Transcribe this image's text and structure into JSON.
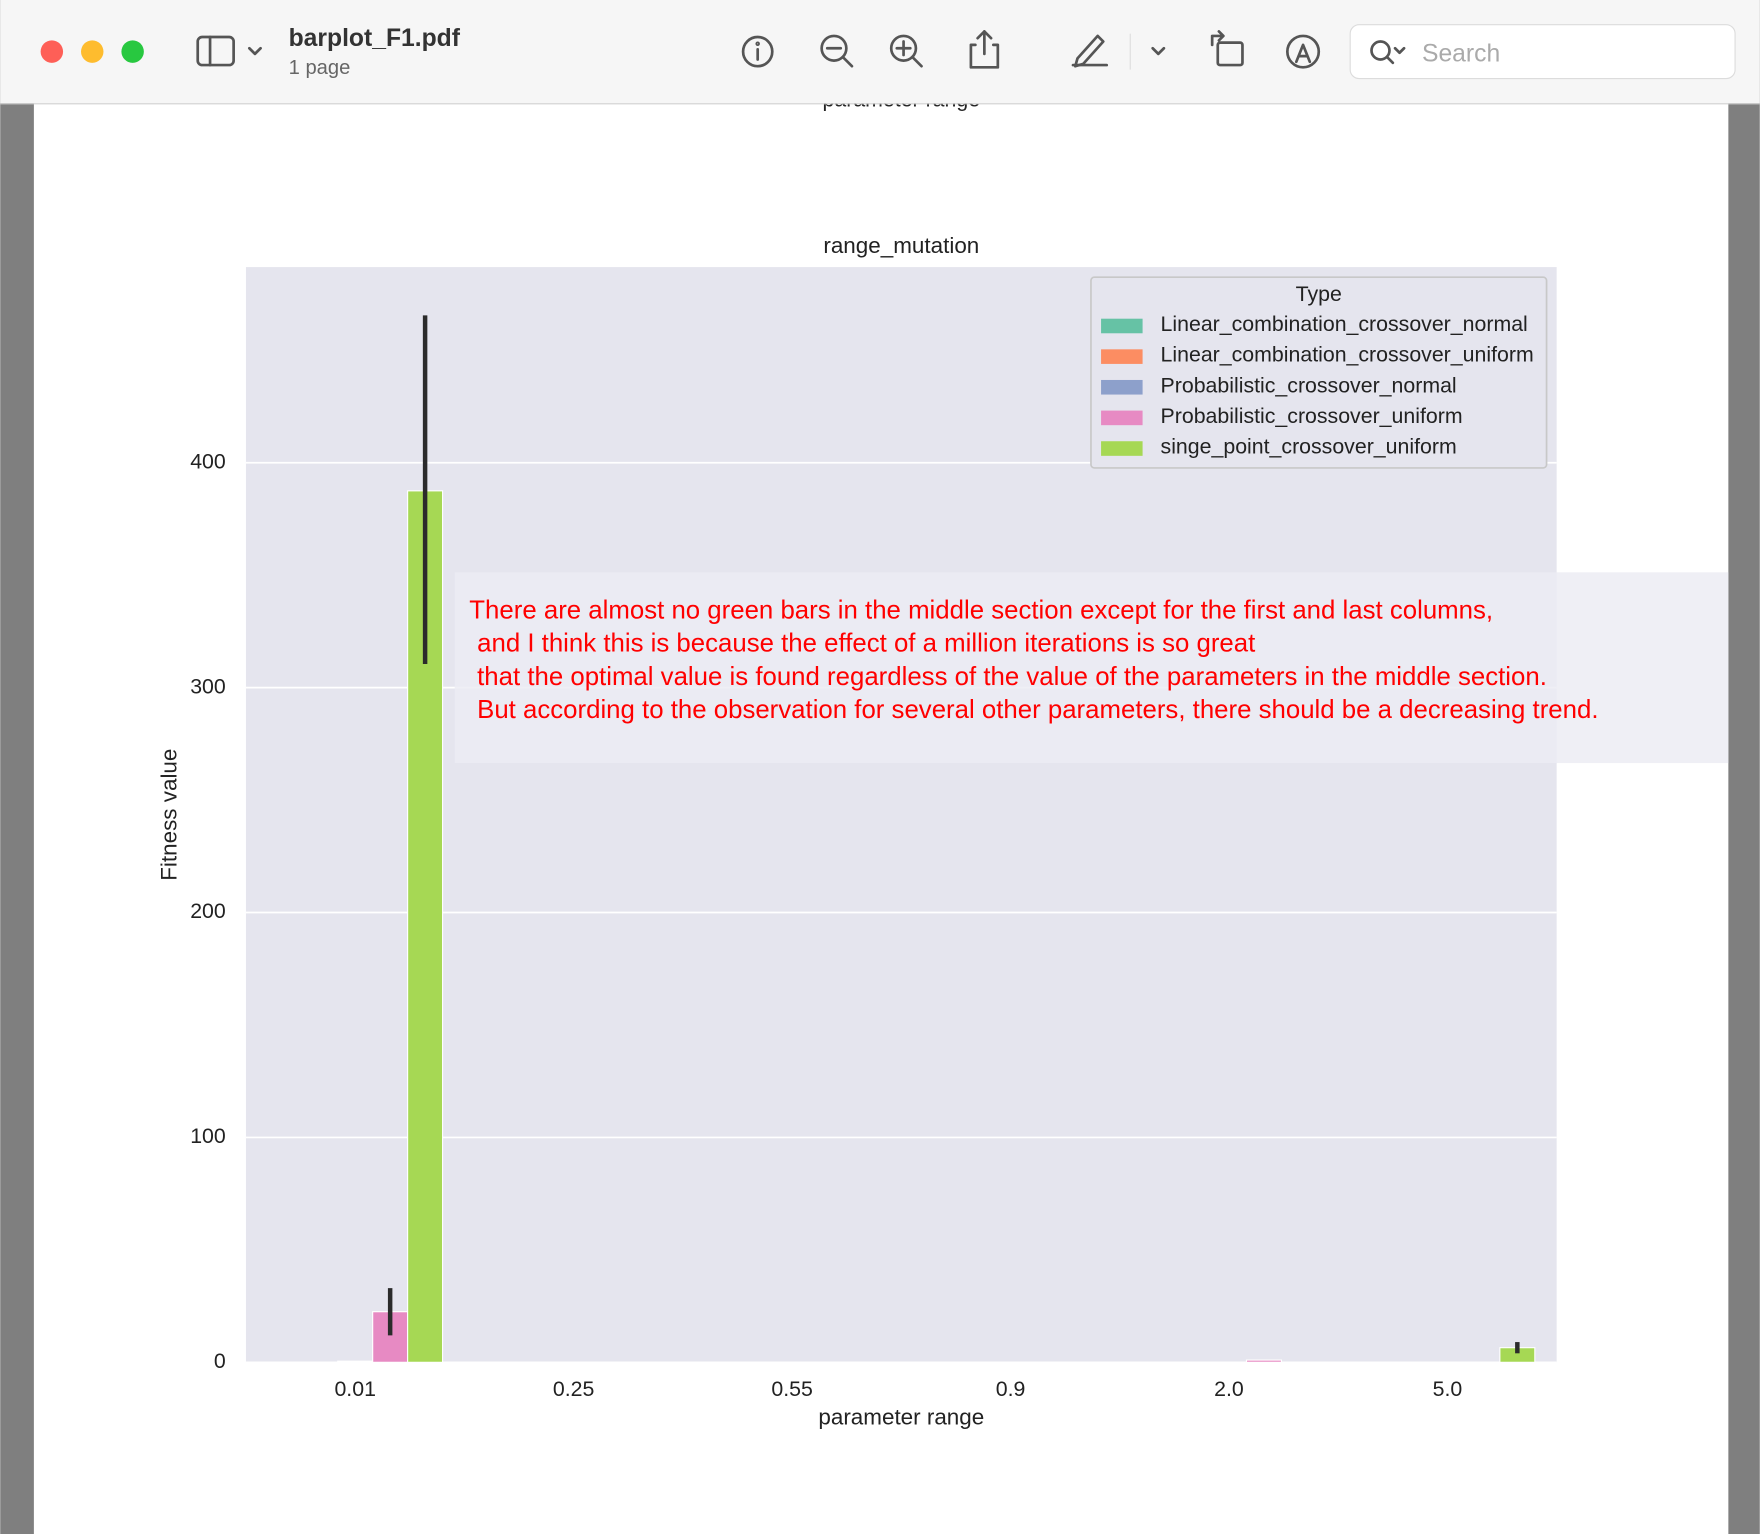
{
  "window": {
    "title": "barplot_F1.pdf",
    "subtitle": "1 page",
    "search_placeholder": "Search",
    "cut_off_label": "parameter range"
  },
  "chart_data": {
    "type": "bar",
    "title": "range_mutation",
    "x_label": "parameter range",
    "y_label": "Fitness value",
    "categories": [
      "0.01",
      "0.25",
      "0.55",
      "0.9",
      "2.0",
      "5.0"
    ],
    "series": [
      {
        "name": "Linear_combination_crossover_normal",
        "color": "#66c2a5",
        "values": [
          0,
          0,
          0,
          0,
          0,
          0
        ],
        "ci_low": [
          null,
          null,
          null,
          null,
          null,
          null
        ],
        "ci_high": [
          null,
          null,
          null,
          null,
          null,
          null
        ]
      },
      {
        "name": "Linear_combination_crossover_uniform",
        "color": "#fc8d62",
        "values": [
          0,
          0,
          0,
          0,
          0,
          0
        ],
        "ci_low": [
          null,
          null,
          null,
          null,
          null,
          null
        ],
        "ci_high": [
          null,
          null,
          null,
          null,
          null,
          null
        ]
      },
      {
        "name": "Probabilistic_crossover_normal",
        "color": "#8da0cb",
        "values": [
          0.5,
          0,
          0,
          0,
          0,
          0
        ],
        "ci_low": [
          null,
          null,
          null,
          null,
          null,
          null
        ],
        "ci_high": [
          null,
          null,
          null,
          null,
          null,
          null
        ]
      },
      {
        "name": "Probabilistic_crossover_uniform",
        "color": "#e78ac3",
        "values": [
          22.5,
          0,
          0,
          0,
          1,
          0
        ],
        "ci_low": [
          12,
          null,
          null,
          null,
          null,
          null
        ],
        "ci_high": [
          33,
          null,
          null,
          null,
          null,
          null
        ]
      },
      {
        "name": "singe_point_crossover_uniform",
        "color": "#a6d854",
        "values": [
          387.5,
          0,
          0,
          0,
          0,
          6.5
        ],
        "ci_low": [
          310.5,
          null,
          null,
          null,
          null,
          4
        ],
        "ci_high": [
          465.5,
          null,
          null,
          null,
          null,
          9
        ]
      }
    ],
    "ylim": [
      0,
      487
    ],
    "yticks": [
      0,
      100,
      200,
      300,
      400
    ],
    "grid": true,
    "legend": {
      "title": "Type",
      "position": "upper right"
    },
    "annotations": [
      "There are almost no green bars in the middle section except for the first and last columns,",
      "and I think this is because the effect of a million iterations is so great",
      "that the optimal value is found regardless of the value of the parameters in the middle section.",
      "But according to the observation for several other parameters, there should be a decreasing trend."
    ],
    "annotation_color": "#ff0000"
  }
}
